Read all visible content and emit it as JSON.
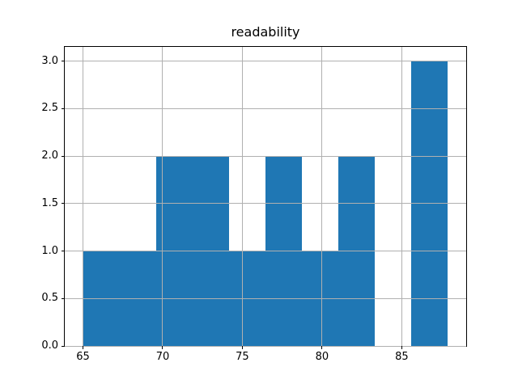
{
  "chart_data": {
    "type": "bar",
    "subtype": "histogram",
    "title": "readability",
    "xlabel": "",
    "ylabel": "",
    "bin_edges": [
      65.0,
      67.29,
      69.58,
      71.87,
      74.16,
      76.45,
      78.74,
      81.03,
      83.32,
      85.61,
      87.9
    ],
    "counts": [
      1,
      1,
      2,
      2,
      1,
      2,
      1,
      2,
      0,
      3
    ],
    "xlim": [
      63.855,
      89.045
    ],
    "ylim": [
      0,
      3.15
    ],
    "xticks": [
      65,
      70,
      75,
      80,
      85
    ],
    "yticks": [
      0.0,
      0.5,
      1.0,
      1.5,
      2.0,
      2.5,
      3.0
    ],
    "xtick_labels": [
      "65",
      "70",
      "75",
      "80",
      "85"
    ],
    "ytick_labels": [
      "0.0",
      "0.5",
      "1.0",
      "1.5",
      "2.0",
      "2.5",
      "3.0"
    ],
    "grid": true,
    "legend": null,
    "bar_color": "#1f77b4",
    "grid_color": "#b0b0b0",
    "spine_color": "#000000",
    "text_color": "#000000",
    "background_color": "#ffffff"
  }
}
